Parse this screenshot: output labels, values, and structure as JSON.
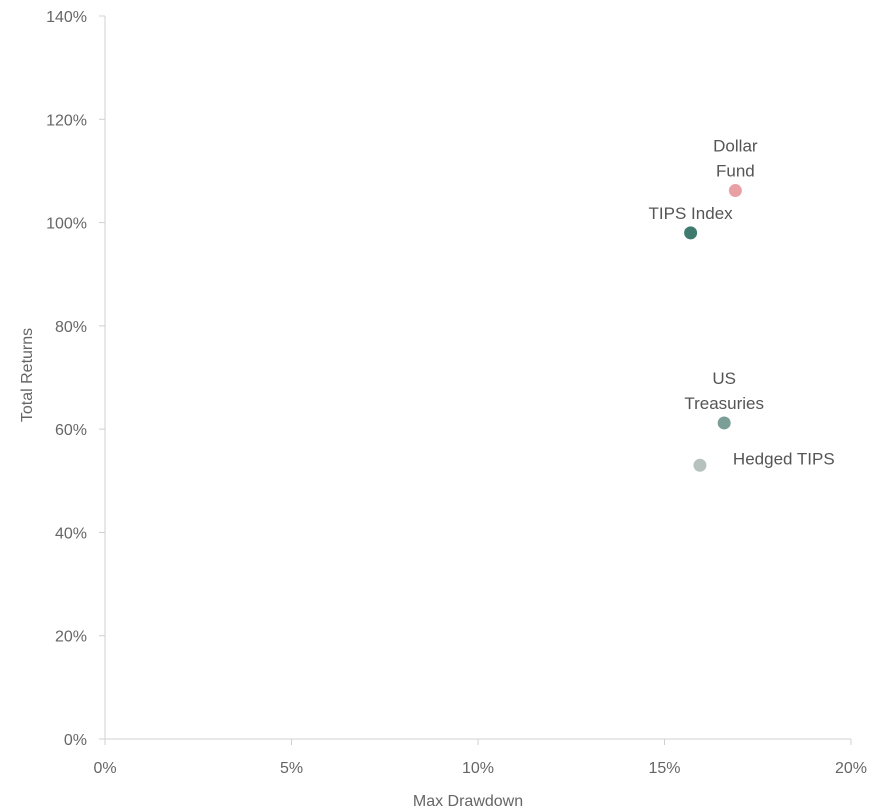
{
  "chart_data": {
    "type": "scatter",
    "title": "",
    "xlabel": "Max Drawdown",
    "ylabel": "Total Returns",
    "xlim": [
      0,
      20
    ],
    "ylim": [
      0,
      140
    ],
    "x_ticks": [
      0,
      5,
      10,
      15,
      20
    ],
    "y_ticks": [
      0,
      20,
      40,
      60,
      80,
      100,
      120,
      140
    ],
    "x_tick_labels": [
      "0%",
      "5%",
      "10%",
      "15%",
      "20%"
    ],
    "y_tick_labels": [
      "0%",
      "20%",
      "40%",
      "60%",
      "80%",
      "100%",
      "120%",
      "140%"
    ],
    "grid": false,
    "legend": "none",
    "points": [
      {
        "label_lines": [
          "Dollar",
          "Fund"
        ],
        "x": 16.9,
        "y": 106.2,
        "color": "#e8a0a4",
        "label_pos": "above"
      },
      {
        "label_lines": [
          "TIPS Index"
        ],
        "x": 15.7,
        "y": 98.0,
        "color": "#3f7a6e",
        "label_pos": "above"
      },
      {
        "label_lines": [
          "US",
          "Treasuries"
        ],
        "x": 16.6,
        "y": 61.2,
        "color": "#7b9e96",
        "label_pos": "above"
      },
      {
        "label_lines": [
          "Hedged TIPS"
        ],
        "x": 15.95,
        "y": 53.0,
        "color": "#b5c2be",
        "label_pos": "right"
      }
    ]
  }
}
